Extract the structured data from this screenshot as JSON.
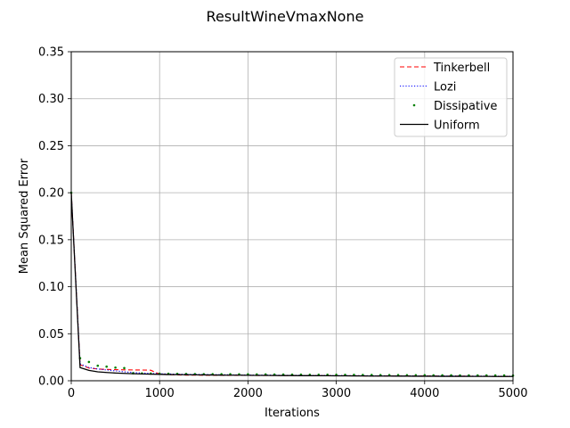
{
  "chart_data": {
    "type": "line",
    "title": "ResultWineVmaxNone",
    "xlabel": "Iterations",
    "ylabel": "Mean Squared Error",
    "xlim": [
      0,
      5000
    ],
    "ylim": [
      0,
      0.35
    ],
    "xticks": [
      0,
      1000,
      2000,
      3000,
      4000,
      5000
    ],
    "xtick_labels": [
      "0",
      "1000",
      "2000",
      "3000",
      "4000",
      "5000"
    ],
    "yticks": [
      0.0,
      0.05,
      0.1,
      0.15,
      0.2,
      0.25,
      0.3,
      0.35
    ],
    "ytick_labels": [
      "0.00",
      "0.05",
      "0.10",
      "0.15",
      "0.20",
      "0.25",
      "0.30",
      "0.35"
    ],
    "grid": true,
    "legend_position": "top-right",
    "x": [
      0,
      100,
      200,
      300,
      400,
      500,
      600,
      700,
      800,
      900,
      1000,
      1100,
      1200,
      1300,
      1400,
      1500,
      1600,
      1700,
      1800,
      1900,
      2000,
      2100,
      2200,
      2300,
      2400,
      2500,
      2600,
      2700,
      2800,
      2900,
      3000,
      3100,
      3200,
      3300,
      3400,
      3500,
      3600,
      3700,
      3800,
      3900,
      4000,
      4100,
      4200,
      4300,
      4400,
      4500,
      4600,
      4700,
      4800,
      4900,
      5000
    ],
    "series": [
      {
        "name": "Tinkerbell",
        "color": "#ff0000",
        "style": "dashed",
        "values": [
          0.2,
          0.017,
          0.0135,
          0.0125,
          0.012,
          0.0118,
          0.0116,
          0.0115,
          0.0114,
          0.0112,
          0.007,
          0.0065,
          0.0062,
          0.006,
          0.006,
          0.0059,
          0.0059,
          0.0058,
          0.0058,
          0.0057,
          0.0057,
          0.0056,
          0.0056,
          0.0056,
          0.0055,
          0.0055,
          0.0055,
          0.0054,
          0.0054,
          0.0054,
          0.0053,
          0.0053,
          0.0053,
          0.0052,
          0.0052,
          0.0052,
          0.0051,
          0.0051,
          0.0051,
          0.005,
          0.005,
          0.005,
          0.0049,
          0.0049,
          0.0049,
          0.0048,
          0.0048,
          0.0048,
          0.0047,
          0.0047,
          0.0047
        ]
      },
      {
        "name": "Lozi",
        "color": "#0000ff",
        "style": "dotted",
        "values": [
          0.2,
          0.018,
          0.014,
          0.0125,
          0.0115,
          0.0105,
          0.0095,
          0.0088,
          0.0082,
          0.0078,
          0.0075,
          0.0072,
          0.007,
          0.0068,
          0.0067,
          0.0066,
          0.0065,
          0.0064,
          0.0063,
          0.0062,
          0.0061,
          0.006,
          0.006,
          0.0059,
          0.0058,
          0.0058,
          0.0057,
          0.0057,
          0.0056,
          0.0056,
          0.0055,
          0.0055,
          0.0054,
          0.0054,
          0.0053,
          0.0053,
          0.0052,
          0.0052,
          0.0052,
          0.0051,
          0.0051,
          0.0051,
          0.005,
          0.005,
          0.005,
          0.0049,
          0.0049,
          0.0049,
          0.0048,
          0.0048,
          0.0048
        ]
      },
      {
        "name": "Dissipative",
        "color": "#008000",
        "style": "points",
        "values": [
          0.2,
          0.024,
          0.02,
          0.016,
          0.015,
          0.014,
          0.0135,
          0.008,
          0.0078,
          0.0076,
          0.0075,
          0.0074,
          0.0073,
          0.0072,
          0.0071,
          0.007,
          0.007,
          0.0069,
          0.0069,
          0.0068,
          0.0068,
          0.0067,
          0.0067,
          0.0066,
          0.0066,
          0.0065,
          0.0065,
          0.0064,
          0.0064,
          0.0063,
          0.0063,
          0.0062,
          0.0062,
          0.0061,
          0.0061,
          0.006,
          0.006,
          0.006,
          0.0059,
          0.0059,
          0.0059,
          0.0058,
          0.0058,
          0.0058,
          0.0057,
          0.0057,
          0.0057,
          0.0056,
          0.0056,
          0.0056,
          0.0055
        ]
      },
      {
        "name": "Uniform",
        "color": "#000000",
        "style": "solid",
        "values": [
          0.2,
          0.014,
          0.011,
          0.0095,
          0.0088,
          0.0082,
          0.0078,
          0.0075,
          0.0072,
          0.007,
          0.0068,
          0.0066,
          0.0065,
          0.0064,
          0.0063,
          0.0062,
          0.0061,
          0.006,
          0.0059,
          0.0059,
          0.0058,
          0.0057,
          0.0057,
          0.0056,
          0.0055,
          0.0055,
          0.0054,
          0.0054,
          0.0053,
          0.0053,
          0.0052,
          0.0052,
          0.0051,
          0.0051,
          0.005,
          0.005,
          0.005,
          0.0049,
          0.0049,
          0.0048,
          0.0048,
          0.0048,
          0.0047,
          0.0047,
          0.0047,
          0.0046,
          0.0046,
          0.0046,
          0.0045,
          0.0045,
          0.0045
        ]
      }
    ]
  }
}
